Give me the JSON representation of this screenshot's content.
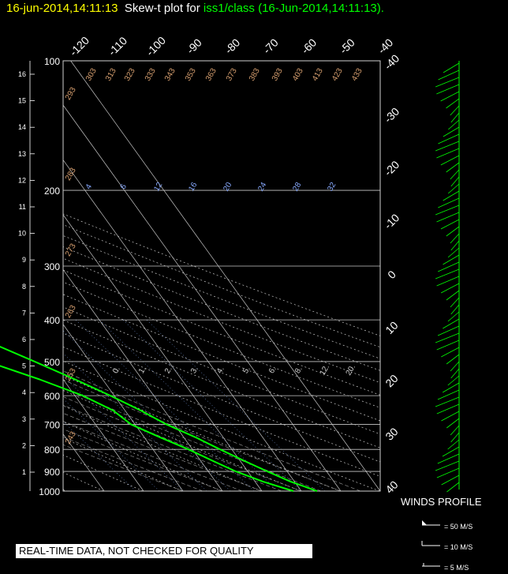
{
  "header": {
    "timestamp": "16-jun-2014,14:11:13",
    "plot_label": "Skew-t plot for",
    "station": "iss1/class (16-Jun-2014,14:11:13)."
  },
  "footer": {
    "quality_note": "REAL-TIME DATA, NOT CHECKED FOR QUALITY"
  },
  "winds": {
    "title": "WINDS PROFILE",
    "legend": [
      "= 50 M/S",
      "= 10 M/S",
      "= 5 M/S"
    ]
  },
  "colors": {
    "background": "#000000",
    "grid": "#c8c8c8",
    "sounding": "#00ff00",
    "theta_label": "#d8a070",
    "mixing_label": "#88aaff"
  },
  "chart_data": {
    "type": "line",
    "title": "",
    "pressure_levels": [
      100,
      200,
      300,
      400,
      500,
      600,
      700,
      800,
      900,
      1000
    ],
    "height_km_ticks": [
      "1",
      "2",
      "3",
      "4",
      "5",
      "6",
      "7",
      "8",
      "9",
      "10",
      "11",
      "12",
      "13",
      "14",
      "15",
      "16"
    ],
    "top_temp_ticks": [
      "-120",
      "-110",
      "-100",
      "-90",
      "-80",
      "-70",
      "-60",
      "-50",
      "-40"
    ],
    "right_temp_ticks": [
      "-40",
      "-30",
      "-20",
      "-10",
      "0",
      "10",
      "20",
      "30",
      "40"
    ],
    "theta_labels": [
      "293",
      "303",
      "313",
      "323",
      "333",
      "343",
      "353",
      "363",
      "373",
      "383",
      "393",
      "403",
      "413",
      "423",
      "433",
      "283",
      "273",
      "263",
      "253",
      "243"
    ],
    "mixing_ratio_upper": [
      "4",
      "6",
      "12",
      "16",
      "20",
      "24",
      "28",
      "32"
    ],
    "mixing_ratio_lower": [
      "0.",
      "1.",
      "2.",
      "3.",
      "4.",
      "5.",
      "6.",
      "8.",
      "12.",
      "20."
    ],
    "series": [
      {
        "points": [
          [
            100,
            -55
          ],
          [
            130,
            -56
          ],
          [
            150,
            -57
          ],
          [
            170,
            -59
          ],
          [
            200,
            -60
          ],
          [
            230,
            -66
          ],
          [
            260,
            -68
          ],
          [
            300,
            -63
          ],
          [
            340,
            -55
          ],
          [
            380,
            -49
          ],
          [
            410,
            -42
          ],
          [
            450,
            -32
          ],
          [
            500,
            -24
          ],
          [
            550,
            -17
          ],
          [
            600,
            -11
          ],
          [
            650,
            -6
          ],
          [
            700,
            -2
          ],
          [
            750,
            3
          ],
          [
            800,
            7
          ],
          [
            850,
            11
          ],
          [
            900,
            15
          ],
          [
            950,
            19
          ],
          [
            1000,
            24
          ]
        ]
      },
      {
        "points": [
          [
            100,
            -72
          ],
          [
            130,
            -74
          ],
          [
            150,
            -74
          ],
          [
            170,
            -76
          ],
          [
            200,
            -80
          ],
          [
            230,
            -84
          ],
          [
            260,
            -86
          ],
          [
            300,
            -88
          ],
          [
            340,
            -80
          ],
          [
            380,
            -69
          ],
          [
            410,
            -64
          ],
          [
            450,
            -52
          ],
          [
            500,
            -36
          ],
          [
            550,
            -26
          ],
          [
            600,
            -18
          ],
          [
            650,
            -13
          ],
          [
            700,
            -11
          ],
          [
            750,
            -6
          ],
          [
            800,
            -1
          ],
          [
            850,
            3
          ],
          [
            900,
            7
          ],
          [
            950,
            12
          ],
          [
            1000,
            18
          ]
        ]
      }
    ],
    "x_range": [
      -40,
      40
    ],
    "y_range": [
      100,
      1000
    ],
    "scale": "log-pressure"
  }
}
